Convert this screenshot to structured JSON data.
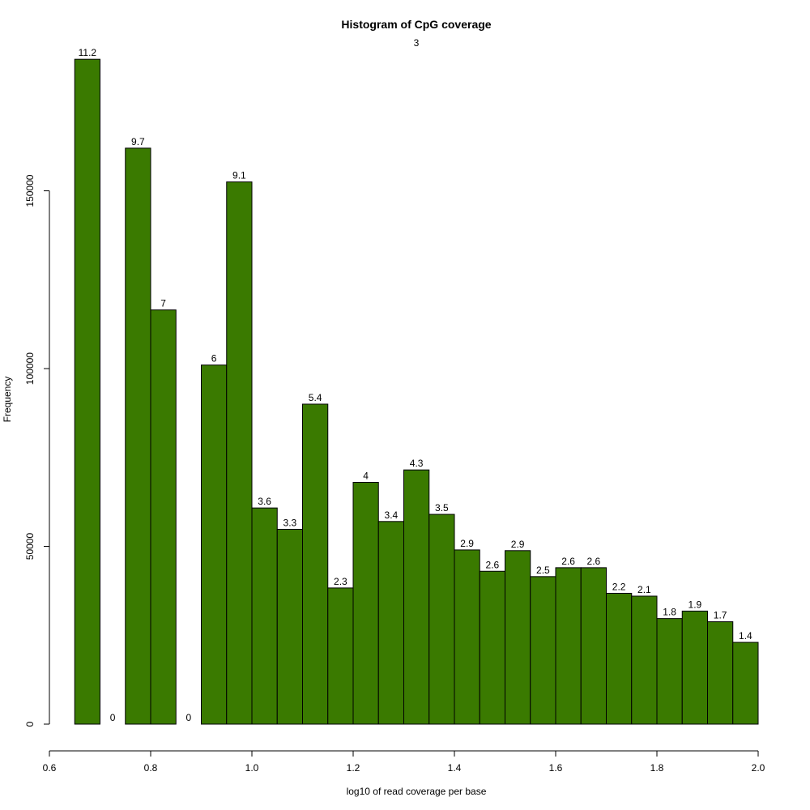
{
  "chart_data": {
    "type": "bar",
    "title": "Histogram of CpG coverage",
    "subtitle": "3",
    "xlabel": "log10 of read coverage per base",
    "ylabel": "Frequency",
    "xlim": [
      0.6,
      2.0
    ],
    "ylim": [
      0,
      190000
    ],
    "xticks": [
      0.6,
      0.8,
      1.0,
      1.2,
      1.4,
      1.6,
      1.8,
      2.0
    ],
    "xtick_labels": [
      "0.6",
      "0.8",
      "1.0",
      "1.2",
      "1.4",
      "1.6",
      "1.8",
      "2.0"
    ],
    "yticks": [
      0,
      50000,
      100000,
      150000
    ],
    "ytick_labels": [
      "0",
      "50000",
      "100000",
      "150000"
    ],
    "bin_edges": [
      0.65,
      0.7,
      0.75,
      0.8,
      0.85,
      0.9,
      0.95,
      1.0,
      1.05,
      1.1,
      1.15,
      1.2,
      1.25,
      1.3,
      1.35,
      1.4,
      1.45,
      1.5,
      1.55,
      1.6,
      1.65,
      1.7,
      1.75,
      1.8,
      1.85,
      1.9,
      1.95,
      2.0
    ],
    "values": [
      187000,
      0,
      162000,
      116500,
      0,
      101000,
      152500,
      60800,
      54800,
      90000,
      38300,
      68000,
      57000,
      71500,
      59000,
      49000,
      43000,
      48800,
      41500,
      44000,
      44000,
      36800,
      36000,
      29700,
      31800,
      28800,
      23000
    ],
    "labels": [
      "11.2",
      "0",
      "9.7",
      "7",
      "0",
      "6",
      "9.1",
      "3.6",
      "3.3",
      "5.4",
      "2.3",
      "4",
      "3.4",
      "4.3",
      "3.5",
      "2.9",
      "2.6",
      "2.9",
      "2.5",
      "2.6",
      "2.6",
      "2.2",
      "2.1",
      "1.8",
      "1.9",
      "1.7",
      "1.4"
    ],
    "bar_color": "#3a7a00",
    "grid": false,
    "legend": "none"
  }
}
